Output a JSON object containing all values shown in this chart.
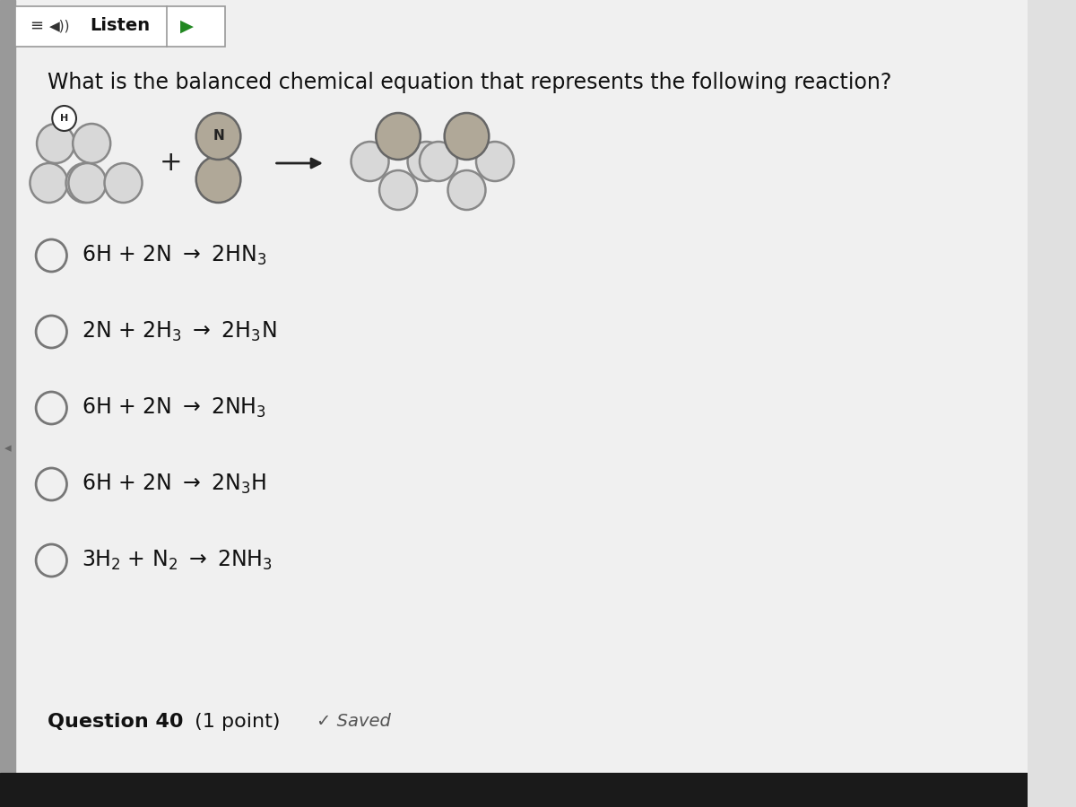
{
  "bg_color": "#e0e0e0",
  "content_bg": "#f0f0f0",
  "header_box_color": "#ffffff",
  "header_border": "#999999",
  "header_text": "Listen",
  "header_text_color": "#111111",
  "question_text": "What is the balanced chemical equation that represents the following reaction?",
  "question_color": "#111111",
  "option_color": "#111111",
  "footer_bold": "Question 40",
  "footer_normal": " (1 point)",
  "saved_text": "✓ Saved",
  "saved_color": "#555555",
  "footer_color": "#111111",
  "bottom_bar_color": "#1a1a1a",
  "left_bar_color": "#999999",
  "mol_H_face": "#d8d8d8",
  "mol_H_edge": "#888888",
  "mol_N_face": "#b0a898",
  "mol_N_edge": "#666666",
  "mol_N_label_color": "#222222",
  "mol_H_label_color": "#444444",
  "radio_face": "#f0f0f0",
  "radio_edge": "#777777",
  "option_texts_math": [
    "6H + 2N $\\rightarrow$ 2HN$_3$",
    "2N + 2H$_3$ $\\rightarrow$ 2H$_3$N",
    "6H + 2N $\\rightarrow$ 2NH$_3$",
    "6H + 2N $\\rightarrow$ 2N$_3$H",
    "3H$_2$ + N$_2$ $\\rightarrow$ 2NH$_3$"
  ]
}
